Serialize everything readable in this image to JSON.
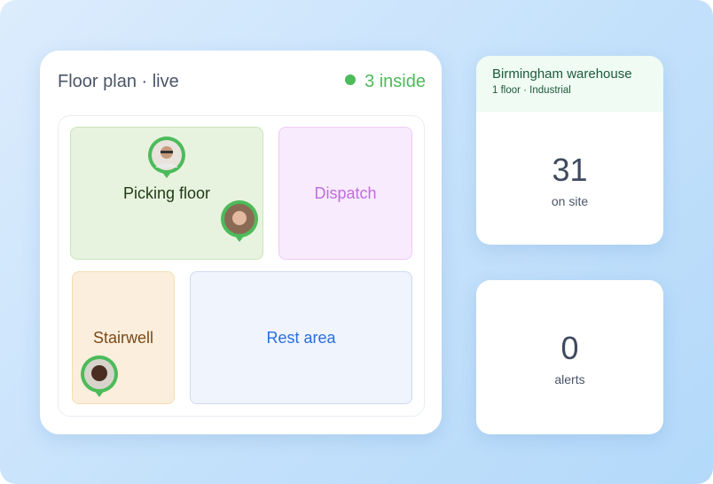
{
  "floor_plan": {
    "title": "Floor plan · live",
    "status": "3 inside",
    "rooms": [
      "Picking floor",
      "Dispatch",
      "Stairwell",
      "Rest area"
    ]
  },
  "site": {
    "name": "Birmingham warehouse",
    "meta": "1 floor · Industrial"
  },
  "stats": [
    {
      "value": 31,
      "label": "on site"
    },
    {
      "value": 0,
      "label": "alerts"
    }
  ]
}
